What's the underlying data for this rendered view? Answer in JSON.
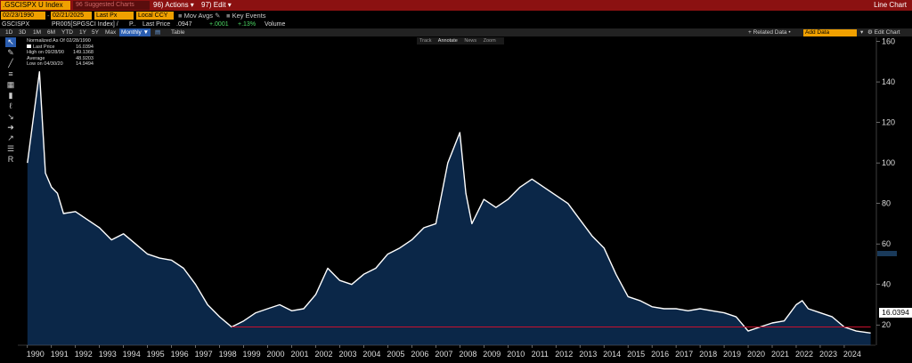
{
  "header": {
    "ticker": ".GSCISPX U Index",
    "suggested": "96 Suggested Charts",
    "actions": "96) Actions ▾",
    "edit": "97) Edit ▾",
    "title": "Line Chart"
  },
  "controls": {
    "start_date": "02/23/1990",
    "end_date": "02/21/2025",
    "field": "Last Px",
    "currency": "Local CCY",
    "mov_avgs": "Mov Avgs",
    "key_events": "Key Events"
  },
  "series_info": {
    "ticker": "GSCISPX",
    "desc": "PR005[SPGSCI Index] /",
    "p": "P..",
    "last_price_label": "Last Price",
    "last_price": ".0947",
    "change": "+.0001",
    "pct": "+.13%",
    "volume": "Volume"
  },
  "toolbar": {
    "periods": [
      "1D",
      "3D",
      "1M",
      "6M",
      "YTD",
      "1Y",
      "5Y",
      "Max"
    ],
    "frequency": "Monthly ▼",
    "table": "Table",
    "related": "+ Related Data •",
    "add_data": "Add Data",
    "edit_chart": "⚙ Edit Chart"
  },
  "legend": {
    "header": "Normalized As Of 02/28/1990",
    "rows": [
      {
        "label": "Last Price",
        "value": "16.0394"
      },
      {
        "label": "High on 09/28/90",
        "value": "149.1368"
      },
      {
        "label": "Average",
        "value": "48.9203"
      },
      {
        "label": "Low on 04/30/20",
        "value": "14.9494"
      }
    ]
  },
  "modes": [
    "Track",
    "Annotate",
    "News",
    "Zoom"
  ],
  "colors": {
    "line": "#ffffff",
    "fill": "#0b2748",
    "refline": "#c8102e",
    "ticker_bg": "#f0a000",
    "title_bg": "#8b1111"
  },
  "chart_data": {
    "type": "area",
    "x": [
      1990,
      1990.5,
      1990.75,
      1991,
      1991.25,
      1991.5,
      1992,
      1992.5,
      1993,
      1993.5,
      1994,
      1994.5,
      1995,
      1995.5,
      1996,
      1996.5,
      1997,
      1997.5,
      1998,
      1998.5,
      1999,
      1999.5,
      2000,
      2000.5,
      2001,
      2001.5,
      2002,
      2002.5,
      2003,
      2003.5,
      2004,
      2004.5,
      2005,
      2005.5,
      2006,
      2006.5,
      2007,
      2007.5,
      2008,
      2008.25,
      2008.5,
      2009,
      2009.5,
      2010,
      2010.5,
      2011,
      2011.5,
      2012,
      2012.5,
      2013,
      2013.5,
      2014,
      2014.5,
      2015,
      2015.5,
      2016,
      2016.5,
      2017,
      2017.5,
      2018,
      2018.5,
      2019,
      2019.5,
      2020,
      2020.5,
      2021,
      2021.5,
      2022,
      2022.25,
      2022.5,
      2023,
      2023.5,
      2024,
      2024.5,
      2025.1
    ],
    "values": [
      100,
      145,
      95,
      88,
      85,
      75,
      76,
      72,
      68,
      62,
      65,
      60,
      55,
      53,
      52,
      48,
      40,
      30,
      24,
      19,
      22,
      26,
      28,
      30,
      27,
      28,
      35,
      48,
      42,
      40,
      45,
      48,
      55,
      58,
      62,
      68,
      70,
      100,
      115,
      85,
      70,
      82,
      78,
      82,
      88,
      92,
      88,
      84,
      80,
      72,
      64,
      58,
      45,
      34,
      32,
      29,
      28,
      28,
      27,
      28,
      27,
      26,
      24,
      17,
      19,
      21,
      22,
      30,
      32,
      28,
      26,
      24,
      19,
      17,
      16.04
    ],
    "xlim": [
      1989.6,
      2025.3
    ],
    "ylim": [
      10,
      162
    ],
    "yticks": [
      20,
      40,
      60,
      80,
      100,
      120,
      140,
      160
    ],
    "xticks": [
      1990,
      1991,
      1992,
      1993,
      1994,
      1995,
      1996,
      1997,
      1998,
      1999,
      2000,
      2001,
      2002,
      2003,
      2004,
      2005,
      2006,
      2007,
      2008,
      2009,
      2010,
      2011,
      2012,
      2013,
      2014,
      2015,
      2016,
      2017,
      2018,
      2019,
      2020,
      2021,
      2022,
      2023,
      2024
    ],
    "last_value_label": "16.0394",
    "reference_line": {
      "y": 19,
      "from_x": 1998.5,
      "to_x": 2025.1
    },
    "legend_position": "top-left",
    "grid": false
  }
}
